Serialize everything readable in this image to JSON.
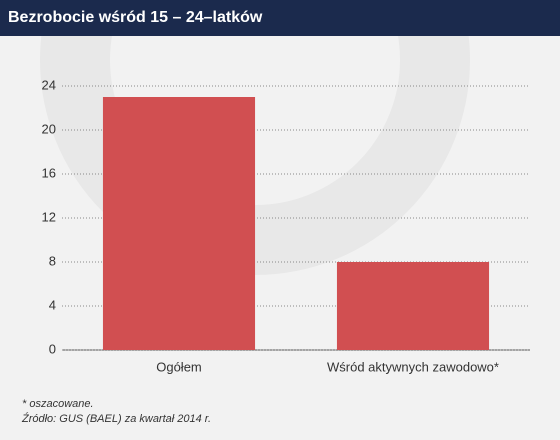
{
  "chart_data": {
    "type": "bar",
    "title": "Bezrobocie wśród 15 – 24–latków",
    "categories": [
      "Ogółem",
      "Wśród aktywnych zawodowo*"
    ],
    "values": [
      23,
      8
    ],
    "color": "#d14f51",
    "ylim": [
      0,
      24
    ],
    "yticks": [
      0,
      4,
      8,
      12,
      16,
      20,
      24
    ],
    "grid": true,
    "footnote": "* oszacowane.",
    "source": "Źródło: GUS (BAEL) za kwartał 2014 r."
  }
}
